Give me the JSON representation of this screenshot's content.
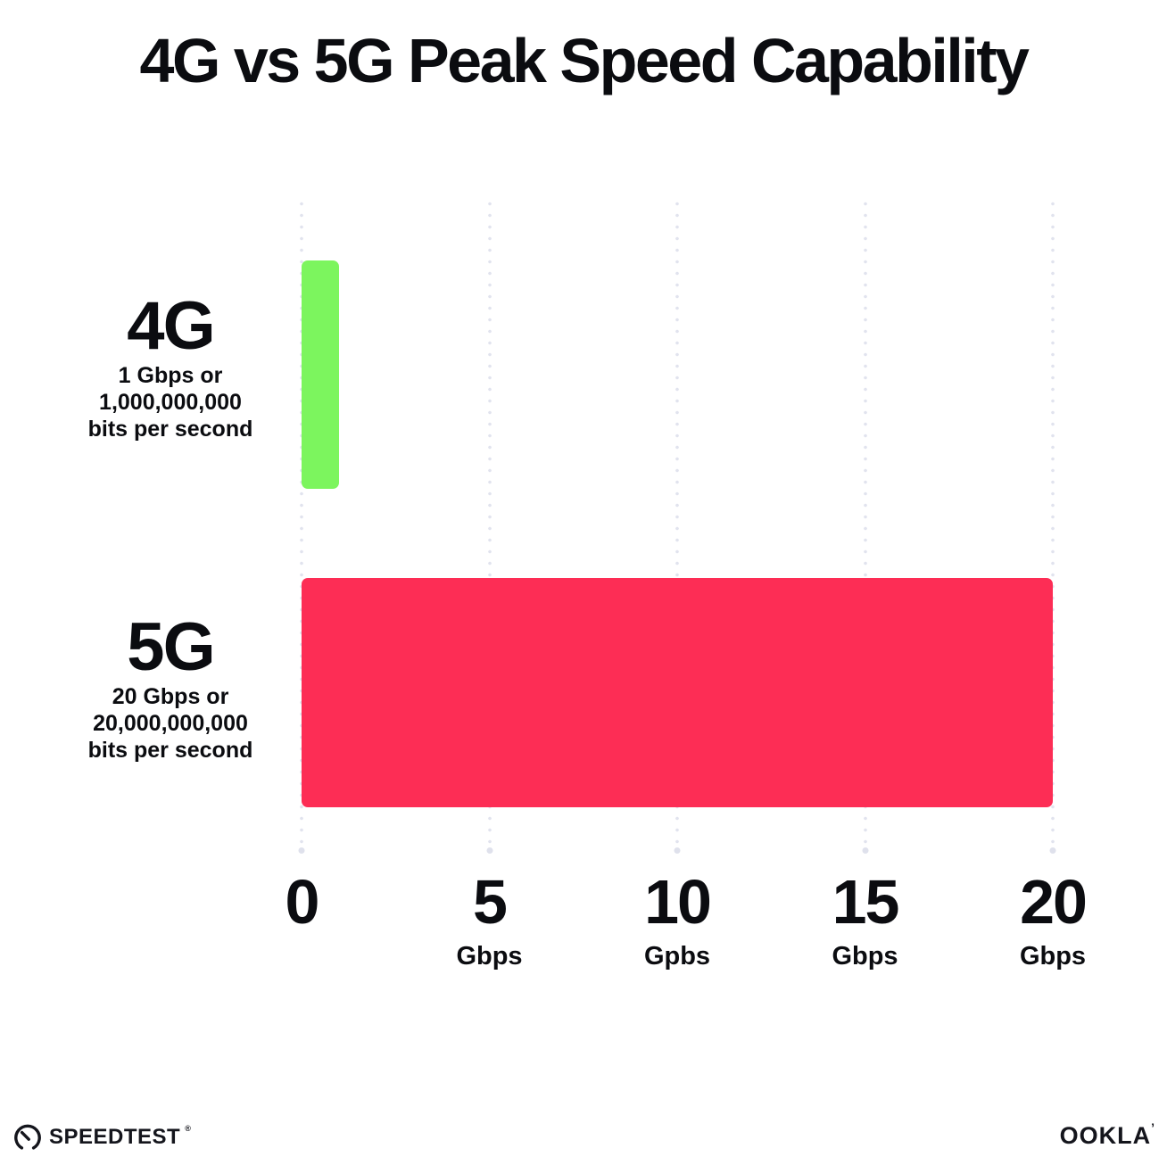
{
  "title": "4G vs 5G Peak Speed Capability",
  "colors": {
    "background": "#ffffff",
    "text": "#0b0c10",
    "gridline_dot": "#e1e3ee",
    "bar_4g_green": "#7cf55e",
    "bar_5g_red": "#fd2d55"
  },
  "chart_data": {
    "type": "bar",
    "orientation": "horizontal",
    "title": "4G vs 5G Peak Speed Capability",
    "categories": [
      "4G",
      "5G"
    ],
    "values": [
      1,
      20
    ],
    "value_unit": "Gbps",
    "xlim": [
      0,
      20
    ],
    "grid": "vertical dotted gridlines at 0, 5, 10, 15, 20",
    "legend": "none",
    "bars": [
      {
        "label": "4G",
        "value_gbps": 1,
        "color": "#7cf55e",
        "sublabel_lines": [
          "1 Gbps or",
          "1,000,000,000",
          "bits per second"
        ]
      },
      {
        "label": "5G",
        "value_gbps": 20,
        "color": "#fd2d55",
        "sublabel_lines": [
          "20 Gbps or",
          "20,000,000,000",
          "bits per second"
        ]
      }
    ],
    "x_ticks": [
      {
        "value": 0,
        "number": "0",
        "unit": ""
      },
      {
        "value": 5,
        "number": "5",
        "unit": "Gbps"
      },
      {
        "value": 10,
        "number": "10",
        "unit": "Gpbs"
      },
      {
        "value": 15,
        "number": "15",
        "unit": "Gbps"
      },
      {
        "value": 20,
        "number": "20",
        "unit": "Gbps"
      }
    ]
  },
  "footer": {
    "speedtest_label": "SPEEDTEST",
    "speedtest_mark": "®",
    "ookla_label": "OOKLA",
    "ookla_mark": "’"
  }
}
